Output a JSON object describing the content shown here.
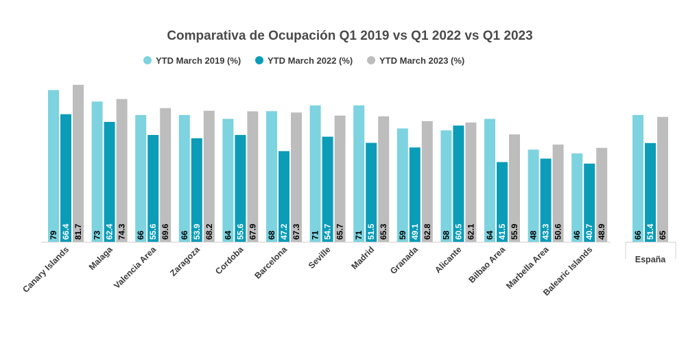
{
  "chart_data": {
    "type": "bar",
    "title": "Comparativa de Ocupación Q1 2019 vs Q1 2022 vs Q1 2023",
    "categories": [
      "Canary Islands",
      "Malaga",
      "Valencia Area",
      "Zaragoza",
      "Cordoba",
      "Barcelona",
      "Seville",
      "Madrid",
      "Granada",
      "Alicante",
      "Bilbao Area",
      "Marbella Area",
      "Balearic Islands"
    ],
    "series": [
      {
        "name": "YTD March 2019 (%)",
        "color": "#7dd3df",
        "values": [
          79,
          73,
          66,
          66,
          64,
          68,
          71,
          71,
          59,
          58,
          64,
          48,
          46
        ],
        "labels": [
          "79",
          "73",
          "66",
          "66",
          "64",
          "68",
          "71",
          "71",
          "59",
          "58",
          "64",
          "48",
          "46"
        ]
      },
      {
        "name": "YTD March 2022 (%)",
        "color": "#0b9cb8",
        "values": [
          66.4,
          62.4,
          55.6,
          53.9,
          55.6,
          47.2,
          54.7,
          51.5,
          49.1,
          60.5,
          41.5,
          43.3,
          40.7
        ],
        "labels": [
          "66.4",
          "62.4",
          "55.6",
          "53.9",
          "55.6",
          "47.2",
          "54.7",
          "51.5",
          "49.1",
          "60.5",
          "41.5",
          "43.3",
          "40.7"
        ]
      },
      {
        "name": "YTD March 2023 (%)",
        "color": "#bdbdbd",
        "values": [
          81.7,
          74.3,
          69.6,
          68.2,
          67.9,
          67.3,
          65.7,
          65.3,
          62.8,
          62.1,
          55.9,
          50.6,
          48.9
        ],
        "labels": [
          "81.7",
          "74.3",
          "69.6",
          "68.2",
          "67.9",
          "67.3",
          "65.7",
          "65.3",
          "62.8",
          "62.1",
          "55.9",
          "50.6",
          "48.9"
        ]
      }
    ],
    "secondary": {
      "category": "España",
      "values": [
        66,
        51.4,
        65
      ],
      "labels": [
        "66",
        "51.4",
        "65"
      ]
    },
    "label_colors": [
      "#000000",
      "#ffffff",
      "#000000"
    ],
    "legend_position": "top-center",
    "grid": false,
    "xlabel": "",
    "ylabel": "",
    "ylim": [
      0,
      82
    ]
  }
}
